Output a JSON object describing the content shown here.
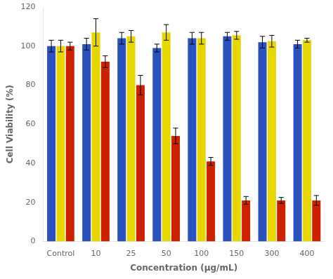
{
  "chart_data": {
    "type": "bar",
    "categories": [
      "Control",
      "10",
      "25",
      "50",
      "100",
      "150",
      "300",
      "400"
    ],
    "series": [
      {
        "color": "#2a52be",
        "values": [
          100,
          101,
          104,
          99,
          104,
          105,
          102,
          101
        ],
        "errors": [
          3,
          3,
          3,
          2,
          3,
          2,
          3,
          2
        ]
      },
      {
        "color": "#e8d600",
        "values": [
          100,
          107,
          105,
          107,
          104,
          105.5,
          102.5,
          103
        ],
        "errors": [
          3,
          7,
          3,
          4,
          3,
          2,
          3,
          1
        ]
      },
      {
        "color": "#cc2200",
        "values": [
          100,
          92,
          80,
          54,
          41,
          21,
          21,
          21
        ],
        "errors": [
          2,
          3,
          5,
          4,
          2,
          2,
          1.5,
          2.5
        ]
      }
    ],
    "xlabel": "Concentration (μg/mL)",
    "ylabel": "Cell Viability (%)",
    "ylim": [
      0,
      120
    ],
    "yticks": [
      0,
      20,
      40,
      60,
      80,
      100,
      120
    ],
    "grid": false
  }
}
